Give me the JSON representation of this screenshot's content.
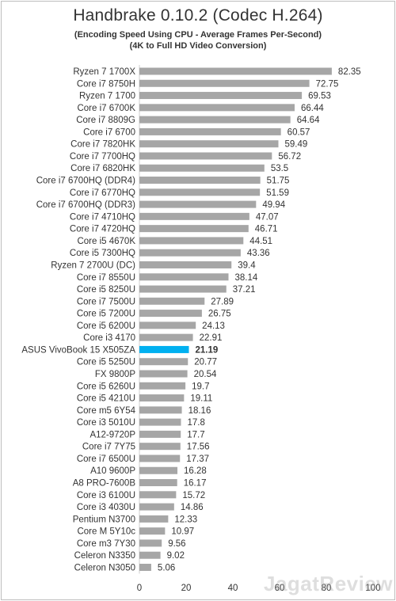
{
  "watermark": "JagatReview",
  "colors": {
    "bar_default": "#a6a6a6",
    "bar_highlight": "#00b0f0",
    "value_highlight": "#e00000"
  },
  "chart_data": {
    "type": "bar",
    "orientation": "horizontal",
    "title": "Handbrake 0.10.2 (Codec H.264)",
    "subtitle": "(Encoding Speed Using CPU - Average Frames Per-Second)",
    "subtitle2": "(4K to Full HD Video Conversion)",
    "xlim": [
      0,
      100
    ],
    "ticks": [
      0,
      20,
      40,
      60,
      80,
      100
    ],
    "grid": false,
    "highlight": "ASUS VivoBook 15 X505ZA",
    "categories": [
      "Ryzen 7 1700X",
      "Core i7 8750H",
      "Ryzen 7 1700",
      "Core i7 6700K",
      "Core i7 8809G",
      "Core i7 6700",
      "Core i7 7820HK",
      "Core i7 7700HQ",
      "Core i7 6820HK",
      "Core i7 6700HQ (DDR4)",
      "Core i7 6770HQ",
      "Core i7 6700HQ (DDR3)",
      "Core i7 4710HQ",
      "Core i7 4720HQ",
      "Core i5 4670K",
      "Core i5 7300HQ",
      "Ryzen 7 2700U (DC)",
      "Core i7 8550U",
      "Core i5 8250U",
      "Core i7 7500U",
      "Core i5 7200U",
      "Core i5 6200U",
      "Core i3 4170",
      "ASUS VivoBook 15 X505ZA",
      "Core i5 5250U",
      "FX 9800P",
      "Core i5 6260U",
      "Core i5 4210U",
      "Core m5 6Y54",
      "Core i3 5010U",
      "A12-9720P",
      "Core i7 7Y75",
      "Core i7 6500U",
      "A10 9600P",
      "A8 PRO-7600B",
      "Core i3 6100U",
      "Core i3 4030U",
      "Pentium N3700",
      "Core M 5Y10c",
      "Core m3 7Y30",
      "Celeron N3350",
      "Celeron N3050"
    ],
    "values": [
      82.35,
      72.75,
      69.53,
      66.44,
      64.64,
      60.57,
      59.49,
      56.72,
      53.5,
      51.75,
      51.59,
      49.94,
      47.07,
      46.71,
      44.51,
      43.36,
      39.4,
      38.14,
      37.21,
      27.89,
      26.75,
      24.13,
      22.91,
      21.19,
      20.77,
      20.54,
      19.7,
      19.11,
      18.16,
      17.8,
      17.7,
      17.56,
      17.37,
      16.28,
      16.17,
      15.72,
      14.86,
      12.33,
      10.97,
      9.56,
      9.02,
      5.06
    ]
  }
}
